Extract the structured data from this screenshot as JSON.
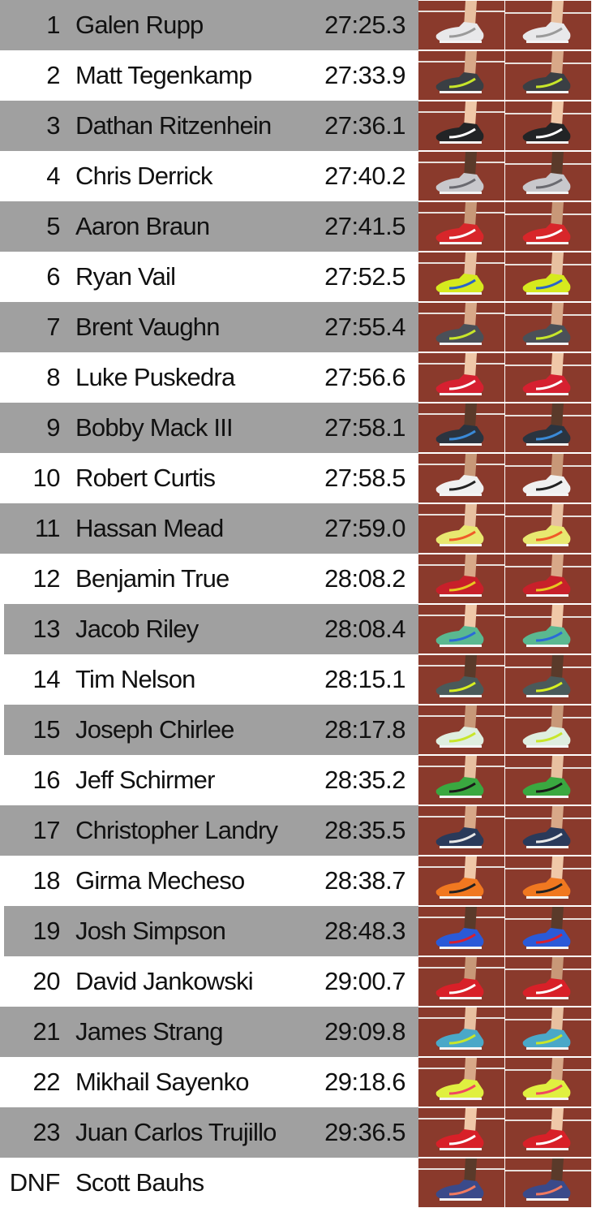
{
  "results": [
    {
      "place": "1",
      "name": "Galen Rupp",
      "time": "27:25.3",
      "shoe_color": "#e8e8ea",
      "accent": "#9a9a9a"
    },
    {
      "place": "2",
      "name": "Matt Tegenkamp",
      "time": "27:33.9",
      "shoe_color": "#3a3f44",
      "accent": "#c8e62a"
    },
    {
      "place": "3",
      "name": "Dathan Ritzenhein",
      "time": "27:36.1",
      "shoe_color": "#222426",
      "accent": "#ffffff"
    },
    {
      "place": "4",
      "name": "Chris Derrick",
      "time": "27:40.2",
      "shoe_color": "#c8c8cc",
      "accent": "#6a6a70"
    },
    {
      "place": "5",
      "name": "Aaron Braun",
      "time": "27:41.5",
      "shoe_color": "#d8262a",
      "accent": "#ffffff"
    },
    {
      "place": "6",
      "name": "Ryan Vail",
      "time": "27:52.5",
      "shoe_color": "#d6ea1e",
      "accent": "#2a64c8"
    },
    {
      "place": "7",
      "name": "Brent Vaughn",
      "time": "27:55.4",
      "shoe_color": "#4a5058",
      "accent": "#c8e62a"
    },
    {
      "place": "8",
      "name": "Luke Puskedra",
      "time": "27:56.6",
      "shoe_color": "#d62030",
      "accent": "#ffffff"
    },
    {
      "place": "9",
      "name": "Bobby Mack III",
      "time": "27:58.1",
      "shoe_color": "#2a3440",
      "accent": "#3a8ad8"
    },
    {
      "place": "10",
      "name": "Robert Curtis",
      "time": "27:58.5",
      "shoe_color": "#f0f0f0",
      "accent": "#222222"
    },
    {
      "place": "11",
      "name": "Hassan Mead",
      "time": "27:59.0",
      "shoe_color": "#e8e870",
      "accent": "#f05a28"
    },
    {
      "place": "12",
      "name": "Benjamin True",
      "time": "28:08.2",
      "shoe_color": "#c8202a",
      "accent": "#e8c820"
    },
    {
      "place": "13",
      "name": "Jacob Riley",
      "time": "28:08.4",
      "shoe_color": "#5ab890",
      "accent": "#2a6ad8"
    },
    {
      "place": "14",
      "name": "Tim Nelson",
      "time": "28:15.1",
      "shoe_color": "#4a5a5a",
      "accent": "#d8f020"
    },
    {
      "place": "15",
      "name": "Joseph Chirlee",
      "time": "28:17.8",
      "shoe_color": "#dfeee0",
      "accent": "#c8e62a"
    },
    {
      "place": "16",
      "name": "Jeff Schirmer",
      "time": "28:35.2",
      "shoe_color": "#3aa840",
      "accent": "#1a1a1a"
    },
    {
      "place": "17",
      "name": "Christopher Landry",
      "time": "28:35.5",
      "shoe_color": "#2a3a5a",
      "accent": "#e8e8e8"
    },
    {
      "place": "18",
      "name": "Girma Mecheso",
      "time": "28:38.7",
      "shoe_color": "#f07820",
      "accent": "#222222"
    },
    {
      "place": "19",
      "name": "Josh Simpson",
      "time": "28:48.3",
      "shoe_color": "#2a5ad8",
      "accent": "#d82030"
    },
    {
      "place": "20",
      "name": "David Jankowski",
      "time": "29:00.7",
      "shoe_color": "#d82028",
      "accent": "#ffffff"
    },
    {
      "place": "21",
      "name": "James Strang",
      "time": "29:09.8",
      "shoe_color": "#4aa8c8",
      "accent": "#c8e62a"
    },
    {
      "place": "22",
      "name": "Mikhail Sayenko",
      "time": "29:18.6",
      "shoe_color": "#e0f040",
      "accent": "#f04860"
    },
    {
      "place": "23",
      "name": "Juan Carlos Trujillo",
      "time": "29:36.5",
      "shoe_color": "#d82028",
      "accent": "#ffffff"
    },
    {
      "place": "DNF",
      "name": "Scott Bauhs",
      "time": "",
      "shoe_color": "#3a4a8a",
      "accent": "#f07a60"
    }
  ],
  "colors": {
    "stripe": "#a0a0a0",
    "track": "#8a3a2c",
    "lane_line": "#e8e0dc"
  }
}
